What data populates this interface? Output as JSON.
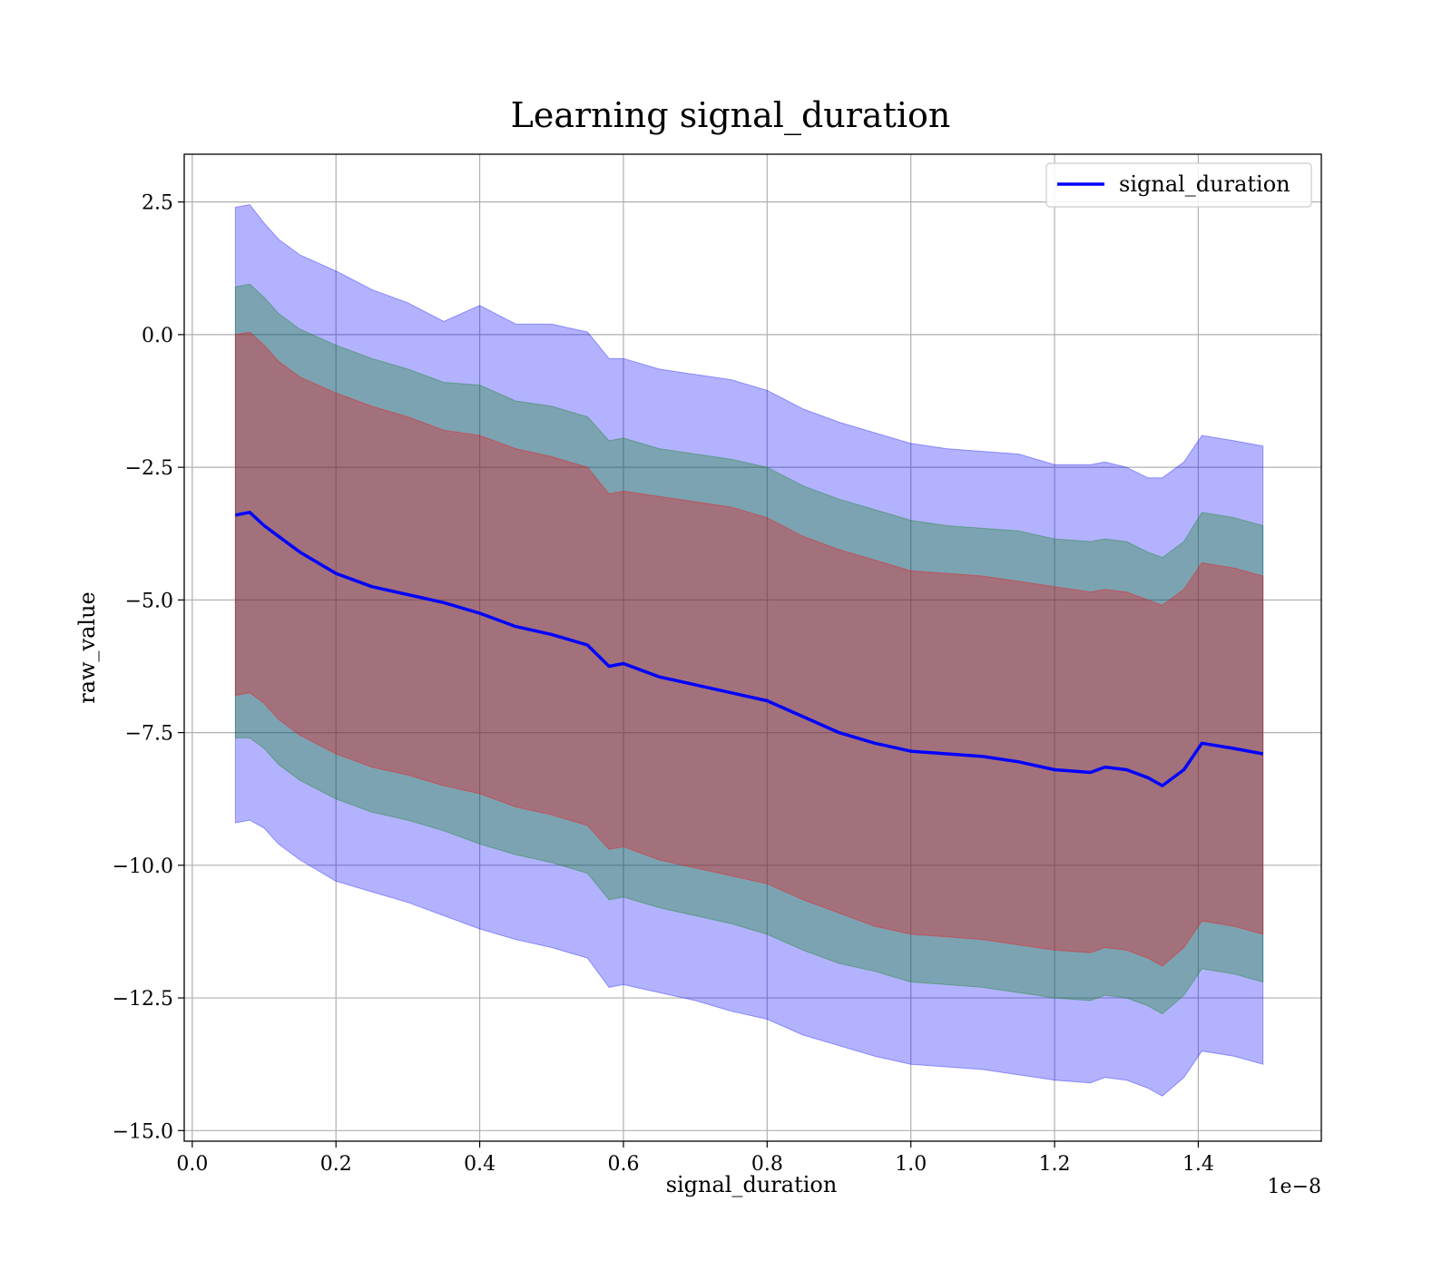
{
  "chart_data": {
    "type": "line",
    "title": "Learning signal_duration",
    "xlabel": "signal_duration",
    "ylabel": "raw_value",
    "x_offset_label": "1e−8",
    "xlim": [
      -0.0112,
      1.5712
    ],
    "ylim": [
      -15.2,
      3.4
    ],
    "grid": true,
    "legend_position": "upper right",
    "x_ticks": [
      0.0,
      0.2,
      0.4,
      0.6,
      0.8,
      1.0,
      1.2,
      1.4
    ],
    "x_tick_labels": [
      "0.0",
      "0.2",
      "0.4",
      "0.6",
      "0.8",
      "1.0",
      "1.2",
      "1.4"
    ],
    "y_ticks": [
      2.5,
      0.0,
      -2.5,
      -5.0,
      -7.5,
      -10.0,
      -12.5,
      -15.0
    ],
    "y_tick_labels": [
      "2.5",
      "0.0",
      "−2.5",
      "−5.0",
      "−7.5",
      "−10.0",
      "−12.5",
      "−15.0"
    ],
    "x": [
      0.06,
      0.08,
      0.1,
      0.12,
      0.15,
      0.2,
      0.25,
      0.3,
      0.35,
      0.4,
      0.45,
      0.5,
      0.55,
      0.58,
      0.6,
      0.65,
      0.7,
      0.75,
      0.8,
      0.85,
      0.9,
      0.95,
      1.0,
      1.05,
      1.1,
      1.15,
      1.2,
      1.25,
      1.27,
      1.3,
      1.33,
      1.35,
      1.38,
      1.405,
      1.45,
      1.49
    ],
    "series": [
      {
        "name": "signal_duration",
        "color": "#0000ff",
        "values": [
          -3.4,
          -3.35,
          -3.6,
          -3.8,
          -4.1,
          -4.5,
          -4.75,
          -4.9,
          -5.05,
          -5.25,
          -5.5,
          -5.65,
          -5.85,
          -6.25,
          -6.2,
          -6.45,
          -6.6,
          -6.75,
          -6.9,
          -7.2,
          -7.5,
          -7.7,
          -7.85,
          -7.9,
          -7.95,
          -8.05,
          -8.2,
          -8.25,
          -8.15,
          -8.2,
          -8.35,
          -8.5,
          -8.2,
          -7.7,
          -7.8,
          -7.9
        ]
      }
    ],
    "bands": [
      {
        "color": "#0000ff",
        "opacity": 0.3,
        "upper": [
          2.4,
          2.45,
          2.1,
          1.8,
          1.5,
          1.2,
          0.85,
          0.6,
          0.25,
          0.55,
          0.2,
          0.2,
          0.05,
          -0.45,
          -0.45,
          -0.65,
          -0.75,
          -0.85,
          -1.05,
          -1.4,
          -1.65,
          -1.85,
          -2.05,
          -2.15,
          -2.2,
          -2.25,
          -2.45,
          -2.45,
          -2.4,
          -2.5,
          -2.7,
          -2.7,
          -2.4,
          -1.9,
          -2.0,
          -2.1
        ],
        "lower": [
          -9.2,
          -9.15,
          -9.3,
          -9.6,
          -9.9,
          -10.3,
          -10.5,
          -10.7,
          -10.95,
          -11.2,
          -11.4,
          -11.55,
          -11.75,
          -12.3,
          -12.25,
          -12.4,
          -12.55,
          -12.75,
          -12.9,
          -13.2,
          -13.4,
          -13.6,
          -13.75,
          -13.8,
          -13.85,
          -13.95,
          -14.05,
          -14.1,
          -14.0,
          -14.05,
          -14.2,
          -14.35,
          -14.0,
          -13.5,
          -13.6,
          -13.75
        ]
      },
      {
        "color": "#008000",
        "opacity": 0.3,
        "upper": [
          0.9,
          0.95,
          0.7,
          0.4,
          0.1,
          -0.2,
          -0.45,
          -0.65,
          -0.9,
          -0.95,
          -1.25,
          -1.35,
          -1.55,
          -2.0,
          -1.95,
          -2.15,
          -2.25,
          -2.35,
          -2.5,
          -2.85,
          -3.1,
          -3.3,
          -3.5,
          -3.6,
          -3.65,
          -3.7,
          -3.85,
          -3.9,
          -3.85,
          -3.9,
          -4.1,
          -4.2,
          -3.9,
          -3.35,
          -3.45,
          -3.6
        ],
        "lower": [
          -7.6,
          -7.6,
          -7.8,
          -8.1,
          -8.4,
          -8.75,
          -9.0,
          -9.15,
          -9.35,
          -9.6,
          -9.8,
          -9.95,
          -10.15,
          -10.65,
          -10.6,
          -10.8,
          -10.95,
          -11.1,
          -11.3,
          -11.6,
          -11.85,
          -12.0,
          -12.2,
          -12.25,
          -12.3,
          -12.4,
          -12.5,
          -12.55,
          -12.45,
          -12.5,
          -12.65,
          -12.8,
          -12.45,
          -11.95,
          -12.05,
          -12.2
        ]
      },
      {
        "color": "#ff0000",
        "opacity": 0.3,
        "upper": [
          0.0,
          0.05,
          -0.2,
          -0.5,
          -0.8,
          -1.1,
          -1.35,
          -1.55,
          -1.8,
          -1.9,
          -2.15,
          -2.3,
          -2.5,
          -3.0,
          -2.95,
          -3.05,
          -3.15,
          -3.25,
          -3.45,
          -3.8,
          -4.05,
          -4.25,
          -4.45,
          -4.5,
          -4.55,
          -4.65,
          -4.75,
          -4.85,
          -4.8,
          -4.85,
          -5.0,
          -5.1,
          -4.8,
          -4.3,
          -4.4,
          -4.55
        ],
        "lower": [
          -6.8,
          -6.75,
          -6.95,
          -7.25,
          -7.55,
          -7.9,
          -8.15,
          -8.3,
          -8.5,
          -8.65,
          -8.9,
          -9.05,
          -9.25,
          -9.7,
          -9.65,
          -9.9,
          -10.05,
          -10.2,
          -10.35,
          -10.65,
          -10.9,
          -11.15,
          -11.3,
          -11.35,
          -11.4,
          -11.5,
          -11.6,
          -11.65,
          -11.55,
          -11.6,
          -11.75,
          -11.9,
          -11.55,
          -11.05,
          -11.15,
          -11.3
        ]
      }
    ]
  }
}
